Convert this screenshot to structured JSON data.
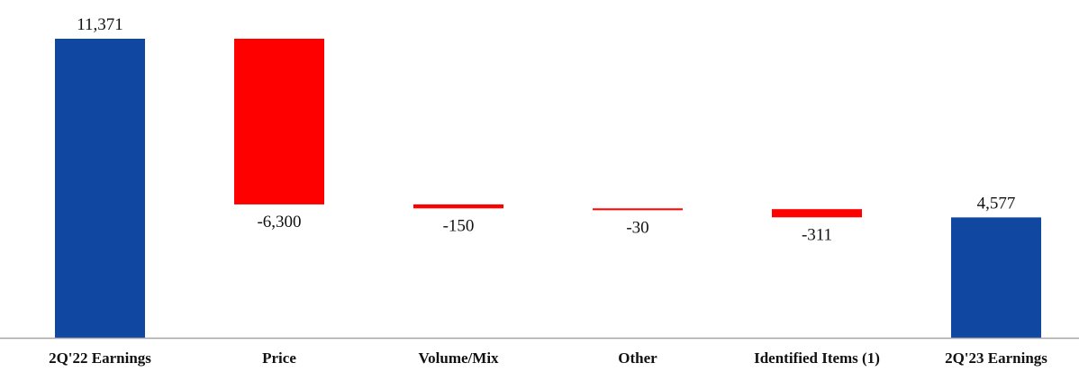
{
  "chart_data": {
    "type": "bar",
    "subtype": "waterfall",
    "title": "",
    "xlabel": "",
    "ylabel": "",
    "categories": [
      "2Q'22 Earnings",
      "Price",
      "Volume/Mix",
      "Other",
      "Identified Items (1)",
      "2Q'23 Earnings"
    ],
    "values": [
      11371,
      -6300,
      -150,
      -30,
      -311,
      4577
    ],
    "value_labels": [
      "11,371",
      "-6,300",
      "-150",
      "-30",
      "-311",
      "4,577"
    ],
    "kinds": [
      "total",
      "delta",
      "delta",
      "delta",
      "delta",
      "total"
    ],
    "ylim": [
      0,
      11371
    ],
    "grid": false,
    "legend": "none",
    "colors": {
      "total": "#0f47a1",
      "negative": "#ff0000",
      "axis": "#a6a6a6",
      "text": "#111111"
    }
  }
}
